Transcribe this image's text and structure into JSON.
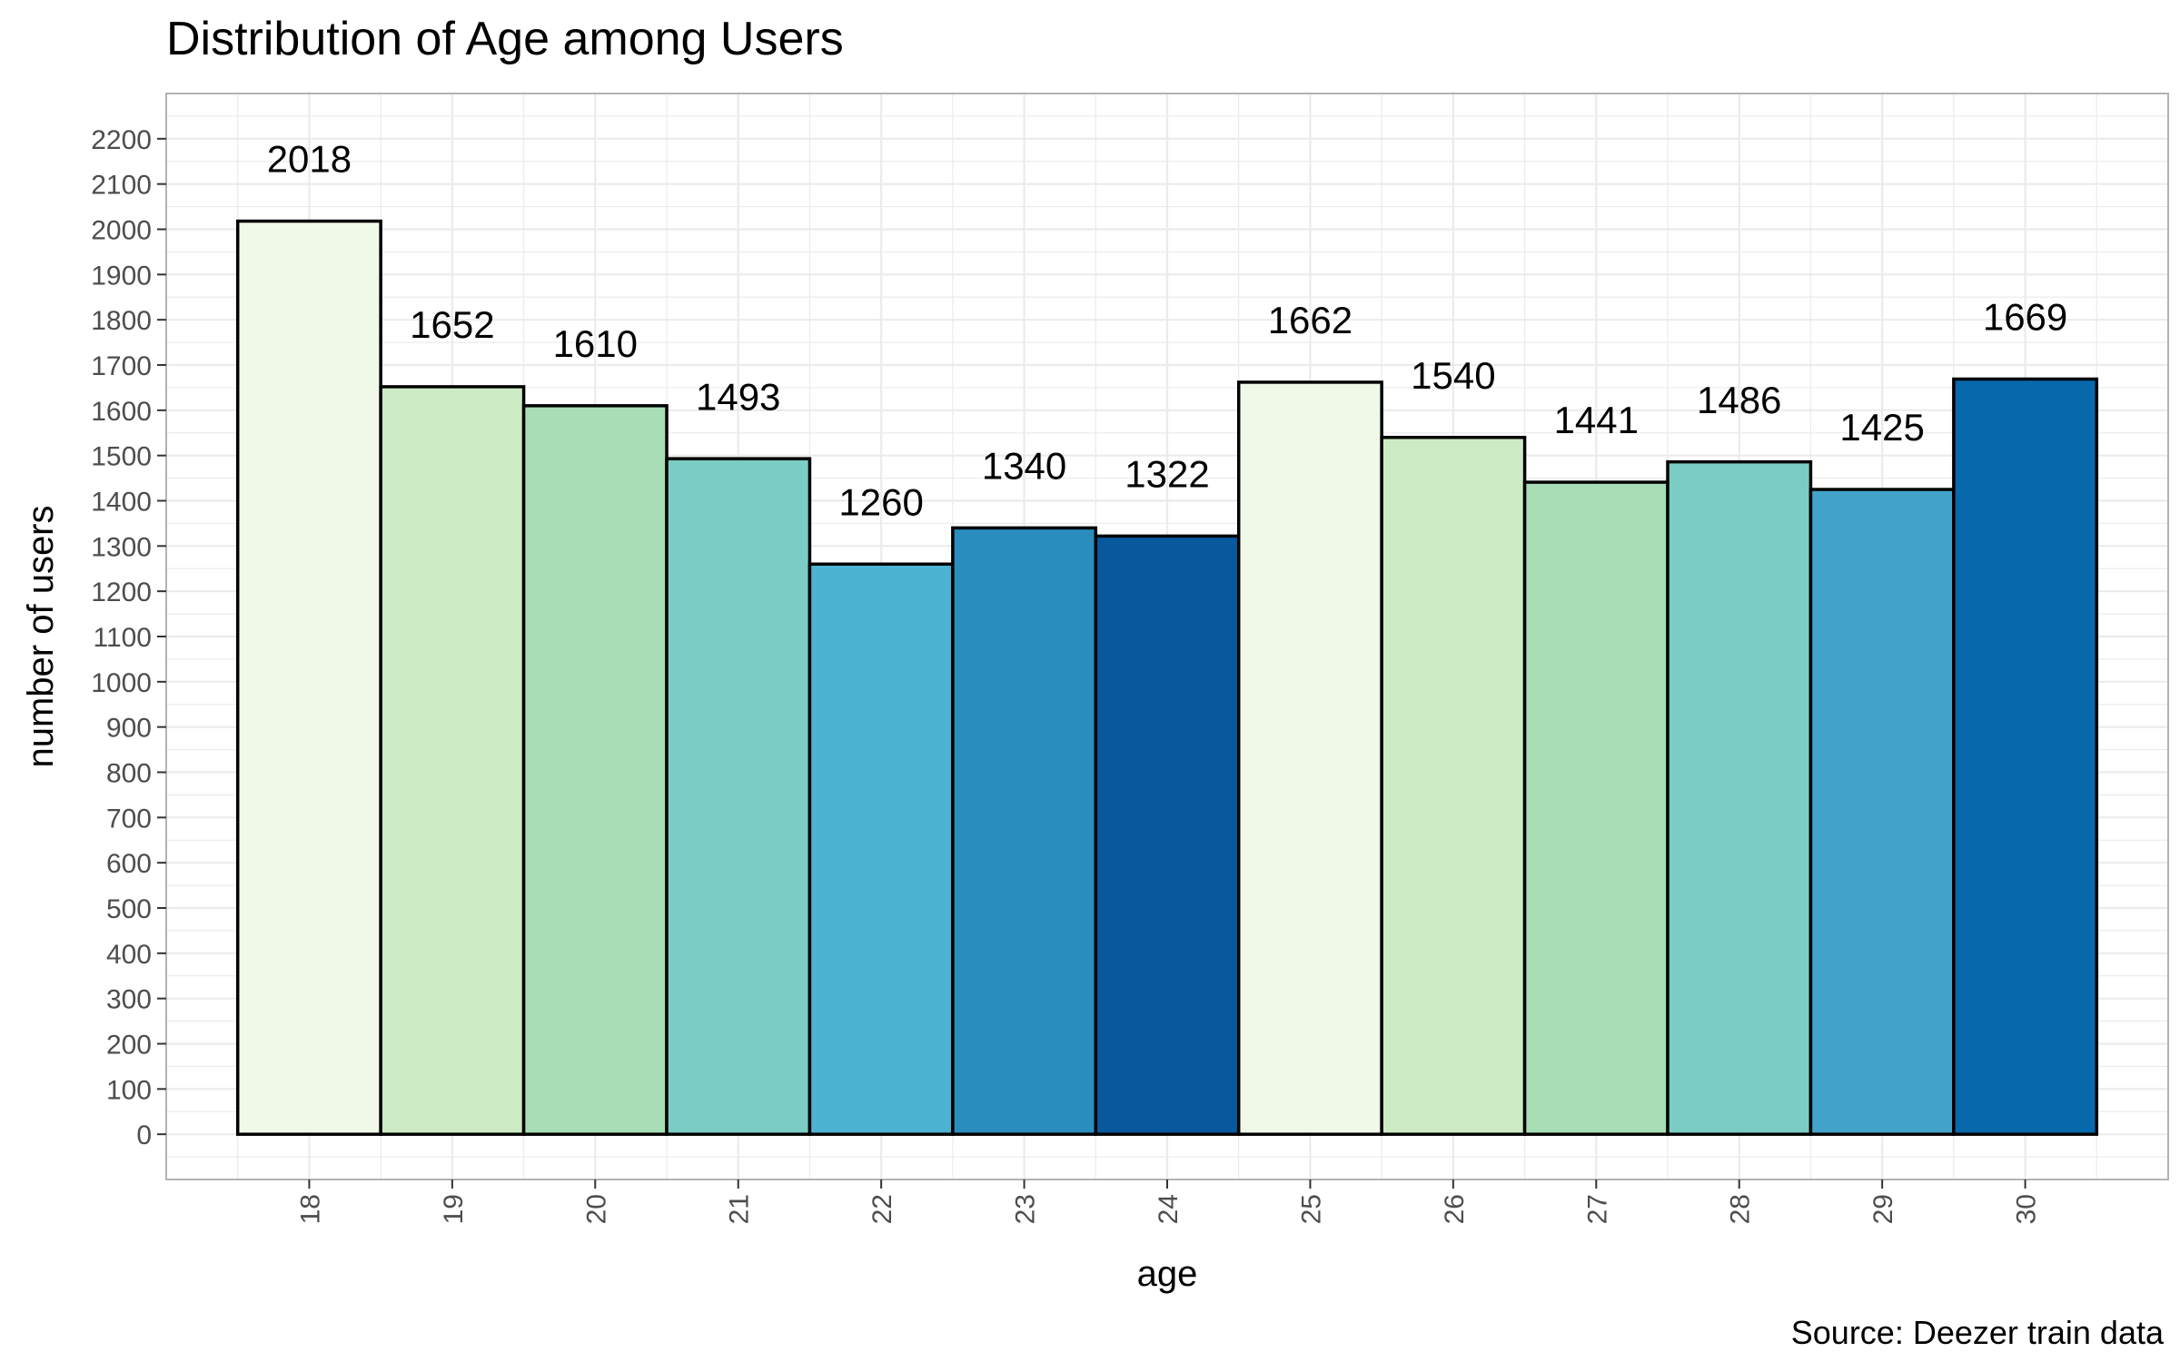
{
  "chart_data": {
    "type": "bar",
    "title": "Distribution of Age among Users",
    "xlabel": "age",
    "ylabel": "number of users",
    "caption": "Source: Deezer train data",
    "categories": [
      "18",
      "19",
      "20",
      "21",
      "22",
      "23",
      "24",
      "25",
      "26",
      "27",
      "28",
      "29",
      "30"
    ],
    "values": [
      2018,
      1652,
      1610,
      1493,
      1260,
      1340,
      1322,
      1662,
      1540,
      1441,
      1486,
      1425,
      1669
    ],
    "bar_colors": [
      "#F0F9E8",
      "#CCEBC5",
      "#A8DDB5",
      "#7BCCC4",
      "#4EB3D3",
      "#2B8CBE",
      "#08589E",
      "#F0F9E8",
      "#CCEBC5",
      "#A8DDB5",
      "#7BCCC4",
      "#43A2CA",
      "#0868AC"
    ],
    "bar_outline_color": "#000000",
    "ylim": [
      -100,
      2300
    ],
    "y_ticks": [
      0,
      100,
      200,
      300,
      400,
      500,
      600,
      700,
      800,
      900,
      1000,
      1100,
      1200,
      1300,
      1400,
      1500,
      1600,
      1700,
      1800,
      1900,
      2000,
      2100,
      2200
    ],
    "x_tick_rotation": "vertical",
    "grid": true,
    "grid_color": "#EBEBEB",
    "panel_border_color": "#B3B3B3",
    "legend": "none",
    "data_labels": true
  }
}
